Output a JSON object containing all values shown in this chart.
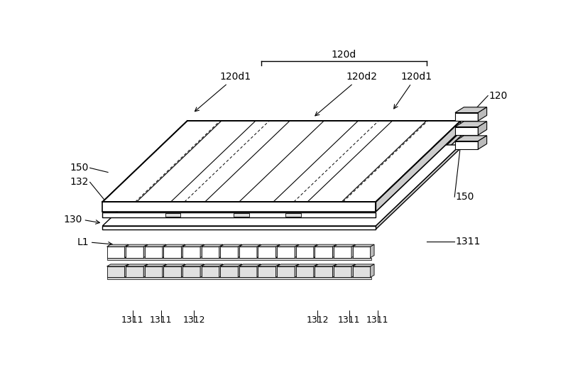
{
  "bg_color": "#ffffff",
  "line_color": "#000000",
  "light_gray": "#cccccc",
  "mid_gray": "#bbbbbb",
  "labels": {
    "120d": "120d",
    "120d1_left": "120d1",
    "120d2": "120d2",
    "120d1_right": "120d1",
    "120": "120",
    "150_top": "150",
    "132": "132",
    "130": "130",
    "L1": "L1",
    "1311_right": "1311",
    "150_bottom": "150",
    "bottom_1311_1": "1311",
    "bottom_1311_2": "1311",
    "bottom_1312_1": "1312",
    "bottom_1312_2": "1312",
    "bottom_1311_3": "1311",
    "bottom_1311_4": "1311"
  }
}
